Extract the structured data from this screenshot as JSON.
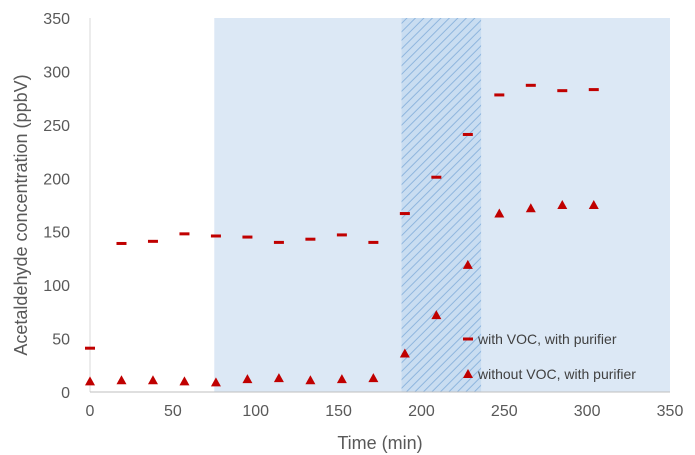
{
  "chart_data": {
    "type": "scatter",
    "title": "",
    "xlabel": "Time (min)",
    "ylabel": "Acetaldehyde concentration (ppbV)",
    "xlim": [
      0,
      350
    ],
    "ylim": [
      0,
      350
    ],
    "x_ticks": [
      "0",
      "50",
      "100",
      "150",
      "200",
      "250",
      "300",
      "350"
    ],
    "y_ticks": [
      "0",
      "50",
      "100",
      "150",
      "200",
      "250",
      "300",
      "350"
    ],
    "grid": false,
    "legend": "bottom-right",
    "shaded_regions": [
      {
        "from": 75,
        "to": 350,
        "style": "solid",
        "color": "#dce8f5"
      },
      {
        "from": 188,
        "to": 236,
        "style": "hatched",
        "color": "#9dc3e6"
      }
    ],
    "series": [
      {
        "name": "with VOC, with purifier",
        "marker": "dash",
        "color": "#c00000",
        "x": [
          0,
          19,
          38,
          57,
          76,
          95,
          114,
          133,
          152,
          171,
          190,
          209,
          228,
          247,
          266,
          285,
          304
        ],
        "y": [
          41,
          139,
          141,
          148,
          146,
          145,
          140,
          143,
          147,
          140,
          167,
          201,
          241,
          278,
          287,
          282,
          283
        ]
      },
      {
        "name": "without VOC, with purifier",
        "marker": "triangle",
        "color": "#c00000",
        "x": [
          0,
          19,
          38,
          57,
          76,
          95,
          114,
          133,
          152,
          171,
          190,
          209,
          228,
          247,
          266,
          285,
          304
        ],
        "y": [
          10,
          11,
          11,
          10,
          9,
          12,
          13,
          11,
          12,
          13,
          36,
          72,
          119,
          167,
          172,
          175,
          175
        ]
      }
    ]
  }
}
